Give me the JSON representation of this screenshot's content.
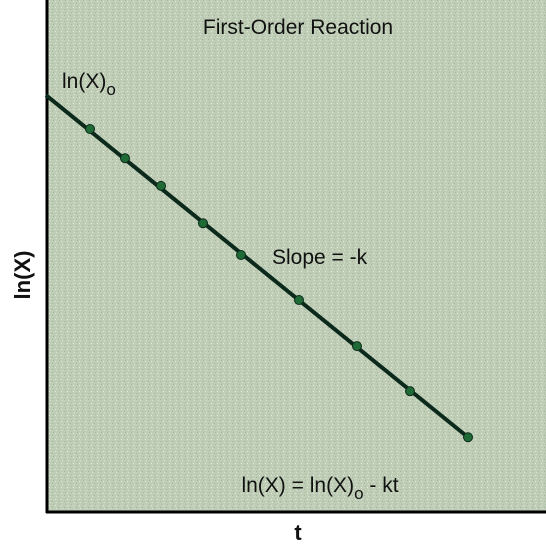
{
  "chart_data": {
    "type": "scatter",
    "title": "First-Order Reaction",
    "x_label": "t",
    "y_label": "ln(X)",
    "xlim": [
      0,
      100
    ],
    "ylim": [
      0,
      100
    ],
    "x": [
      8.8,
      15.8,
      23,
      31.4,
      39,
      50.6,
      62.2,
      72.8,
      84.4
    ],
    "values": [
      74.8,
      69.1,
      63.7,
      56.4,
      50.2,
      41.4,
      32.4,
      23.6,
      14.6
    ],
    "color": "#1f6b35",
    "line": {
      "x": [
        0,
        84.4
      ],
      "values": [
        81.4,
        14.6
      ],
      "color": "#0c2a1c"
    },
    "annotations": [
      {
        "parts": [
          {
            "text": "ln(X)"
          },
          {
            "text": "o",
            "sub": true
          }
        ]
      },
      {
        "parts": [
          {
            "text": "Slope = -k"
          }
        ]
      },
      {
        "parts": [
          {
            "text": "ln(X) = ln(X)"
          },
          {
            "text": "o",
            "sub": true
          },
          {
            "text": " - kt"
          }
        ]
      }
    ]
  }
}
